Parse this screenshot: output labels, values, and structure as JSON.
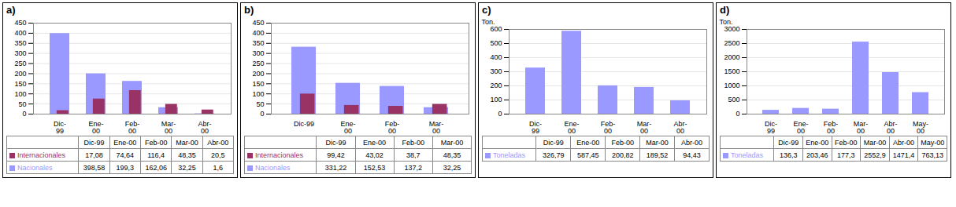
{
  "chart_data": [
    {
      "type": "bar",
      "title": "a)",
      "categories": [
        "Dic-\n99",
        "Ene-\n00",
        "Feb-\n00",
        "Mar-\n00",
        "Abr-\n00"
      ],
      "table_columns": [
        "Dic-99",
        "Ene-00",
        "Feb-00",
        "Mar-00",
        "Abr-00"
      ],
      "series": [
        {
          "name": "Internacionales",
          "color": "#993366",
          "values": [
            17.08,
            74.64,
            116.4,
            48.35,
            20.5
          ],
          "value_labels": [
            "17,08",
            "74,64",
            "116,4",
            "48,35",
            "20,5"
          ]
        },
        {
          "name": "Nacionales",
          "color": "#9999ff",
          "values": [
            398.58,
            199.3,
            162.06,
            32.25,
            1.6
          ],
          "value_labels": [
            "398,58",
            "199,3",
            "162,06",
            "32,25",
            "1,6"
          ]
        }
      ],
      "ylim": [
        0,
        450
      ],
      "yticks": [
        0,
        50,
        100,
        150,
        200,
        250,
        300,
        350,
        400,
        450
      ],
      "grid": true
    },
    {
      "type": "bar",
      "title": "b)",
      "categories": [
        "Dic-99",
        "Ene-\n00",
        "Feb-\n00",
        "Mar-\n00"
      ],
      "table_columns": [
        "Dic-99",
        "Ene-00",
        "Feb-00",
        "Mar-00"
      ],
      "series": [
        {
          "name": "Internacionales",
          "color": "#993366",
          "values": [
            99.42,
            43.02,
            38.7,
            48.35
          ],
          "value_labels": [
            "99,42",
            "43,02",
            "38,7",
            "48,35"
          ]
        },
        {
          "name": "Nacionales",
          "color": "#9999ff",
          "values": [
            331.22,
            152.53,
            137.2,
            32.25
          ],
          "value_labels": [
            "331,22",
            "152,53",
            "137,2",
            "32,25"
          ]
        }
      ],
      "ylim": [
        0,
        450
      ],
      "yticks": [
        0,
        50,
        100,
        150,
        200,
        250,
        300,
        350,
        400,
        450
      ],
      "grid": true
    },
    {
      "type": "bar",
      "title": "c)",
      "ylabel": "Ton.",
      "categories": [
        "Dic-\n99",
        "Ene-\n00",
        "Feb-\n00",
        "Mar-\n00",
        "Abr-\n00"
      ],
      "table_columns": [
        "Dic-99",
        "Ene-00",
        "Feb-00",
        "Mar-00",
        "Abr-00"
      ],
      "series": [
        {
          "name": "Toneladas",
          "color": "#9999ff",
          "values": [
            326.79,
            587.45,
            200.82,
            189.52,
            94.43
          ],
          "value_labels": [
            "326,79",
            "587,45",
            "200,82",
            "189,52",
            "94,43"
          ]
        }
      ],
      "ylim": [
        0,
        600
      ],
      "yticks": [
        0,
        100,
        200,
        300,
        400,
        500,
        600
      ],
      "grid": true
    },
    {
      "type": "bar",
      "title": "d)",
      "ylabel": "Ton.",
      "categories": [
        "Dic-\n99",
        "Ene-\n00",
        "Feb-\n00",
        "Mar-\n00",
        "Abr-\n00",
        "May-\n00"
      ],
      "table_columns": [
        "Dic-99",
        "Ene-00",
        "Feb-00",
        "Mar-00",
        "Abr-00",
        "May-00"
      ],
      "series": [
        {
          "name": "Toneladas",
          "color": "#9999ff",
          "values": [
            136.3,
            203.46,
            177.3,
            2552.9,
            1471.4,
            763.13
          ],
          "value_labels": [
            "136,3",
            "203,46",
            "177,3",
            "2552,9",
            "1471,4",
            "763,13"
          ]
        }
      ],
      "ylim": [
        0,
        3000
      ],
      "yticks": [
        0,
        500,
        1000,
        1500,
        2000,
        2500,
        3000
      ],
      "grid": true
    }
  ]
}
